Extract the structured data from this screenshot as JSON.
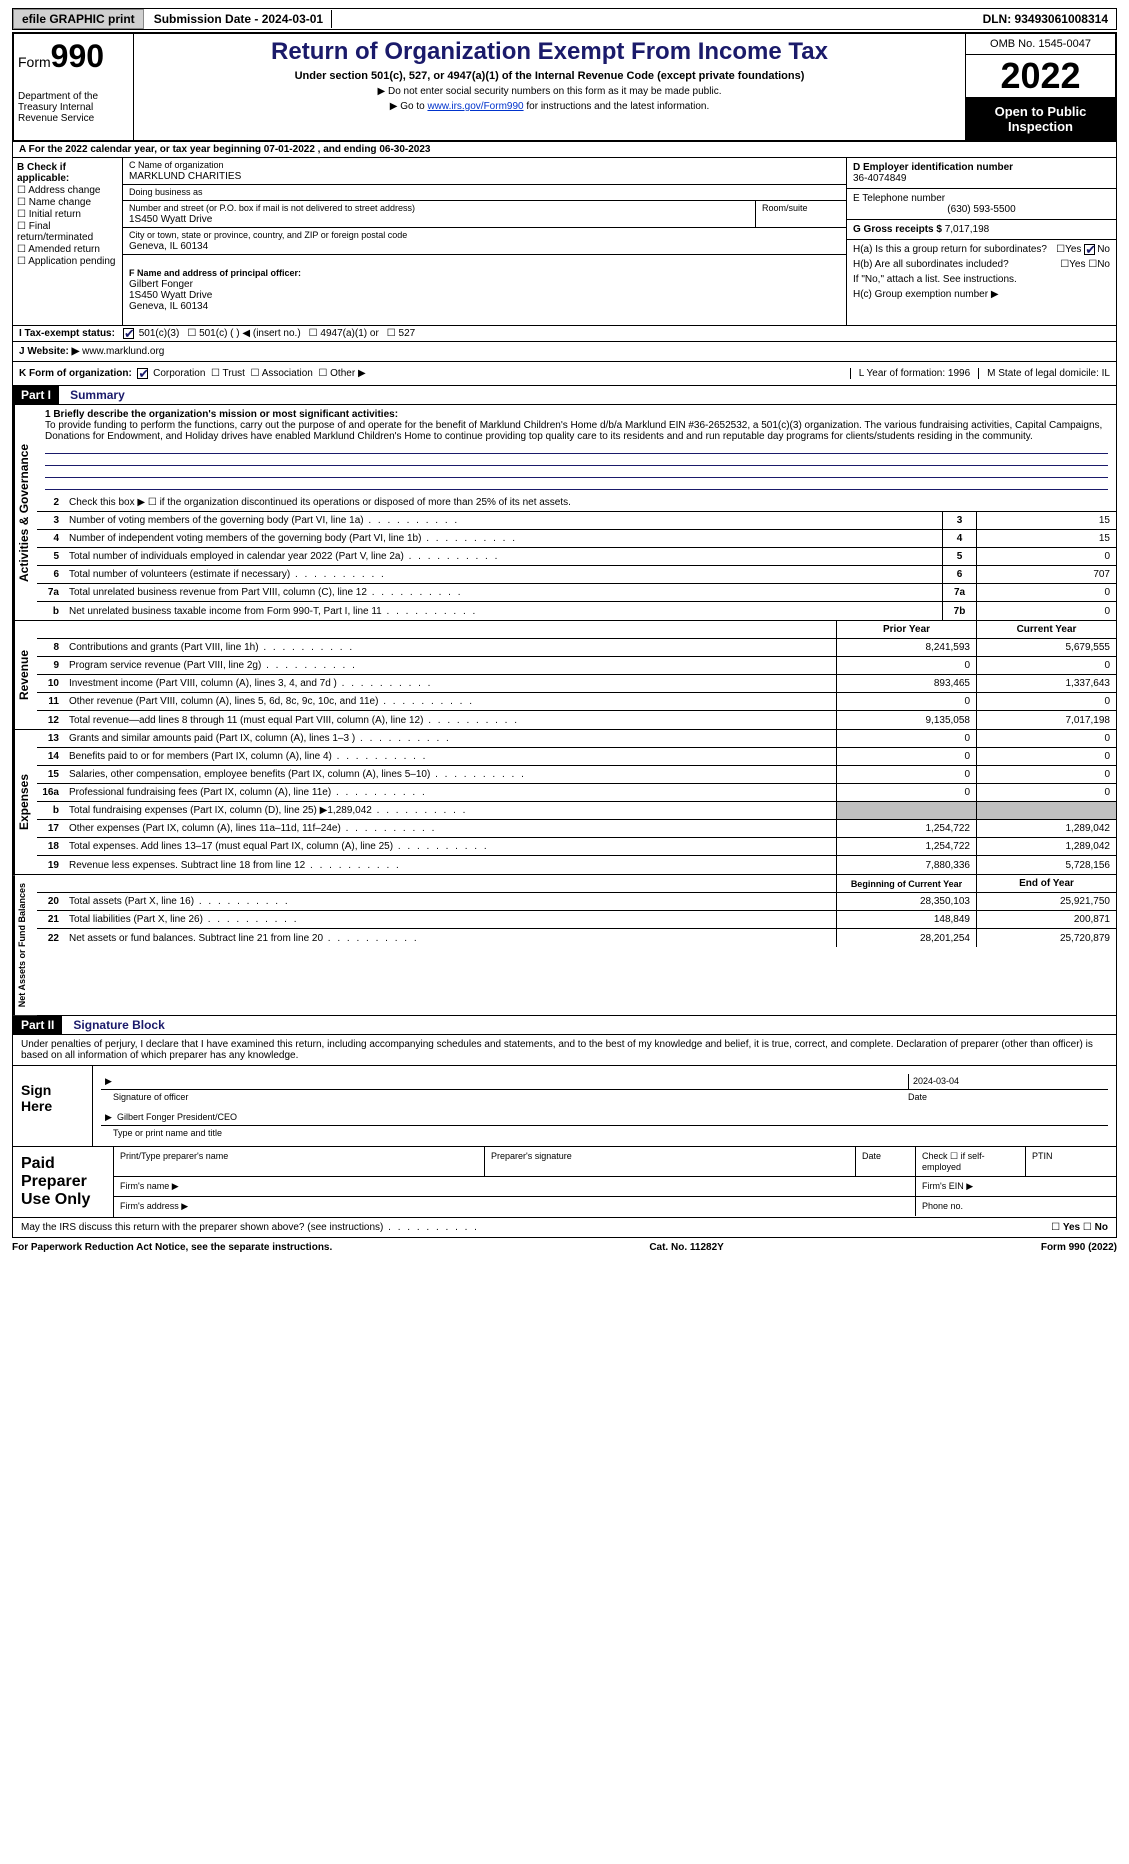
{
  "topbar": {
    "efile": "efile GRAPHIC print",
    "submission": "Submission Date - 2024-03-01",
    "dln": "DLN: 93493061008314"
  },
  "header": {
    "form_label": "Form",
    "form_number": "990",
    "dept": "Department of the Treasury Internal Revenue Service",
    "title": "Return of Organization Exempt From Income Tax",
    "subtitle": "Under section 501(c), 527, or 4947(a)(1) of the Internal Revenue Code (except private foundations)",
    "note1": "▶ Do not enter social security numbers on this form as it may be made public.",
    "note2_pre": "▶ Go to ",
    "note2_link": "www.irs.gov/Form990",
    "note2_post": " for instructions and the latest information.",
    "omb": "OMB No. 1545-0047",
    "year": "2022",
    "open": "Open to Public Inspection"
  },
  "row_a": "A For the 2022 calendar year, or tax year beginning 07-01-2022    , and ending 06-30-2023",
  "col_b": {
    "header": "B Check if applicable:",
    "opts": [
      "Address change",
      "Name change",
      "Initial return",
      "Final return/terminated",
      "Amended return",
      "Application pending"
    ]
  },
  "col_c": {
    "name_lbl": "C Name of organization",
    "name": "MARKLUND CHARITIES",
    "dba_lbl": "Doing business as",
    "dba": "",
    "street_lbl": "Number and street (or P.O. box if mail is not delivered to street address)",
    "street": "1S450 Wyatt Drive",
    "room_lbl": "Room/suite",
    "city_lbl": "City or town, state or province, country, and ZIP or foreign postal code",
    "city": "Geneva, IL  60134",
    "officer_lbl": "F  Name and address of principal officer:",
    "officer": "Gilbert Fonger\n1S450 Wyatt Drive\nGeneva, IL  60134"
  },
  "col_d": {
    "ein_lbl": "D Employer identification number",
    "ein": "36-4074849",
    "phone_lbl": "E Telephone number",
    "phone": "(630) 593-5500",
    "gross_lbl": "G Gross receipts $",
    "gross": "7,017,198"
  },
  "col_h": {
    "ha": "H(a)  Is this a group return for subordinates?",
    "hb": "H(b)  Are all subordinates included?",
    "hb_note": "If \"No,\" attach a list. See instructions.",
    "hc": "H(c)  Group exemption number ▶"
  },
  "row_i": {
    "label": "I  Tax-exempt status:",
    "opts": [
      "501(c)(3)",
      "501(c) (  ) ◀ (insert no.)",
      "4947(a)(1) or",
      "527"
    ]
  },
  "row_j": {
    "label": "J  Website: ▶",
    "val": "www.marklund.org"
  },
  "row_k": {
    "label": "K Form of organization:",
    "opts": [
      "Corporation",
      "Trust",
      "Association",
      "Other ▶"
    ],
    "l": "L Year of formation: 1996",
    "m": "M State of legal domicile: IL"
  },
  "part1": {
    "hdr": "Part I",
    "title": "Summary",
    "line1_lbl": "1  Briefly describe the organization's mission or most significant activities:",
    "mission": "To provide funding to perform the functions, carry out the purpose of and operate for the benefit of Marklund Children's Home d/b/a Marklund EIN #36-2652532, a 501(c)(3) organization. The various fundraising activities, Capital Campaigns, Donations for Endowment, and Holiday drives have enabled Marklund Children's Home to continue providing top quality care to its residents and and run reputable day programs for clients/students residing in the community.",
    "line2": "Check this box ▶ ☐  if the organization discontinued its operations or disposed of more than 25% of its net assets.",
    "vtab_ag": "Activities & Governance",
    "vtab_rev": "Revenue",
    "vtab_exp": "Expenses",
    "vtab_na": "Net Assets or Fund Balances",
    "lines_ag": [
      {
        "n": "3",
        "t": "Number of voting members of the governing body (Part VI, line 1a)",
        "box": "3",
        "v": "15"
      },
      {
        "n": "4",
        "t": "Number of independent voting members of the governing body (Part VI, line 1b)",
        "box": "4",
        "v": "15"
      },
      {
        "n": "5",
        "t": "Total number of individuals employed in calendar year 2022 (Part V, line 2a)",
        "box": "5",
        "v": "0"
      },
      {
        "n": "6",
        "t": "Total number of volunteers (estimate if necessary)",
        "box": "6",
        "v": "707"
      },
      {
        "n": "7a",
        "t": "Total unrelated business revenue from Part VIII, column (C), line 12",
        "box": "7a",
        "v": "0"
      },
      {
        "n": "b",
        "t": "Net unrelated business taxable income from Form 990-T, Part I, line 11",
        "box": "7b",
        "v": "0"
      }
    ],
    "col_prior": "Prior Year",
    "col_current": "Current Year",
    "lines_rev": [
      {
        "n": "8",
        "t": "Contributions and grants (Part VIII, line 1h)",
        "p": "8,241,593",
        "c": "5,679,555"
      },
      {
        "n": "9",
        "t": "Program service revenue (Part VIII, line 2g)",
        "p": "0",
        "c": "0"
      },
      {
        "n": "10",
        "t": "Investment income (Part VIII, column (A), lines 3, 4, and 7d )",
        "p": "893,465",
        "c": "1,337,643"
      },
      {
        "n": "11",
        "t": "Other revenue (Part VIII, column (A), lines 5, 6d, 8c, 9c, 10c, and 11e)",
        "p": "0",
        "c": "0"
      },
      {
        "n": "12",
        "t": "Total revenue—add lines 8 through 11 (must equal Part VIII, column (A), line 12)",
        "p": "9,135,058",
        "c": "7,017,198"
      }
    ],
    "lines_exp": [
      {
        "n": "13",
        "t": "Grants and similar amounts paid (Part IX, column (A), lines 1–3 )",
        "p": "0",
        "c": "0"
      },
      {
        "n": "14",
        "t": "Benefits paid to or for members (Part IX, column (A), line 4)",
        "p": "0",
        "c": "0"
      },
      {
        "n": "15",
        "t": "Salaries, other compensation, employee benefits (Part IX, column (A), lines 5–10)",
        "p": "0",
        "c": "0"
      },
      {
        "n": "16a",
        "t": "Professional fundraising fees (Part IX, column (A), line 11e)",
        "p": "0",
        "c": "0"
      },
      {
        "n": "b",
        "t": "Total fundraising expenses (Part IX, column (D), line 25) ▶1,289,042",
        "p": "",
        "c": "",
        "shaded": true
      },
      {
        "n": "17",
        "t": "Other expenses (Part IX, column (A), lines 11a–11d, 11f–24e)",
        "p": "1,254,722",
        "c": "1,289,042"
      },
      {
        "n": "18",
        "t": "Total expenses. Add lines 13–17 (must equal Part IX, column (A), line 25)",
        "p": "1,254,722",
        "c": "1,289,042"
      },
      {
        "n": "19",
        "t": "Revenue less expenses. Subtract line 18 from line 12",
        "p": "7,880,336",
        "c": "5,728,156"
      }
    ],
    "col_boy": "Beginning of Current Year",
    "col_eoy": "End of Year",
    "lines_na": [
      {
        "n": "20",
        "t": "Total assets (Part X, line 16)",
        "p": "28,350,103",
        "c": "25,921,750"
      },
      {
        "n": "21",
        "t": "Total liabilities (Part X, line 26)",
        "p": "148,849",
        "c": "200,871"
      },
      {
        "n": "22",
        "t": "Net assets or fund balances. Subtract line 21 from line 20",
        "p": "28,201,254",
        "c": "25,720,879"
      }
    ]
  },
  "part2": {
    "hdr": "Part II",
    "title": "Signature Block",
    "decl": "Under penalties of perjury, I declare that I have examined this return, including accompanying schedules and statements, and to the best of my knowledge and belief, it is true, correct, and complete. Declaration of preparer (other than officer) is based on all information of which preparer has any knowledge.",
    "sign_here": "Sign Here",
    "sig_officer": "Signature of officer",
    "sig_date": "Date",
    "sig_date_val": "2024-03-04",
    "sig_name": "Gilbert Fonger  President/CEO",
    "sig_name_lbl": "Type or print name and title",
    "paid": "Paid Preparer Use Only",
    "prep_name": "Print/Type preparer's name",
    "prep_sig": "Preparer's signature",
    "prep_date": "Date",
    "prep_check": "Check ☐ if self-employed",
    "ptin": "PTIN",
    "firm_name": "Firm's name    ▶",
    "firm_ein": "Firm's EIN ▶",
    "firm_addr": "Firm's address ▶",
    "phone": "Phone no.",
    "may_irs": "May the IRS discuss this return with the preparer shown above? (see instructions)"
  },
  "footer": {
    "left": "For Paperwork Reduction Act Notice, see the separate instructions.",
    "mid": "Cat. No. 11282Y",
    "right": "Form 990 (2022)"
  }
}
